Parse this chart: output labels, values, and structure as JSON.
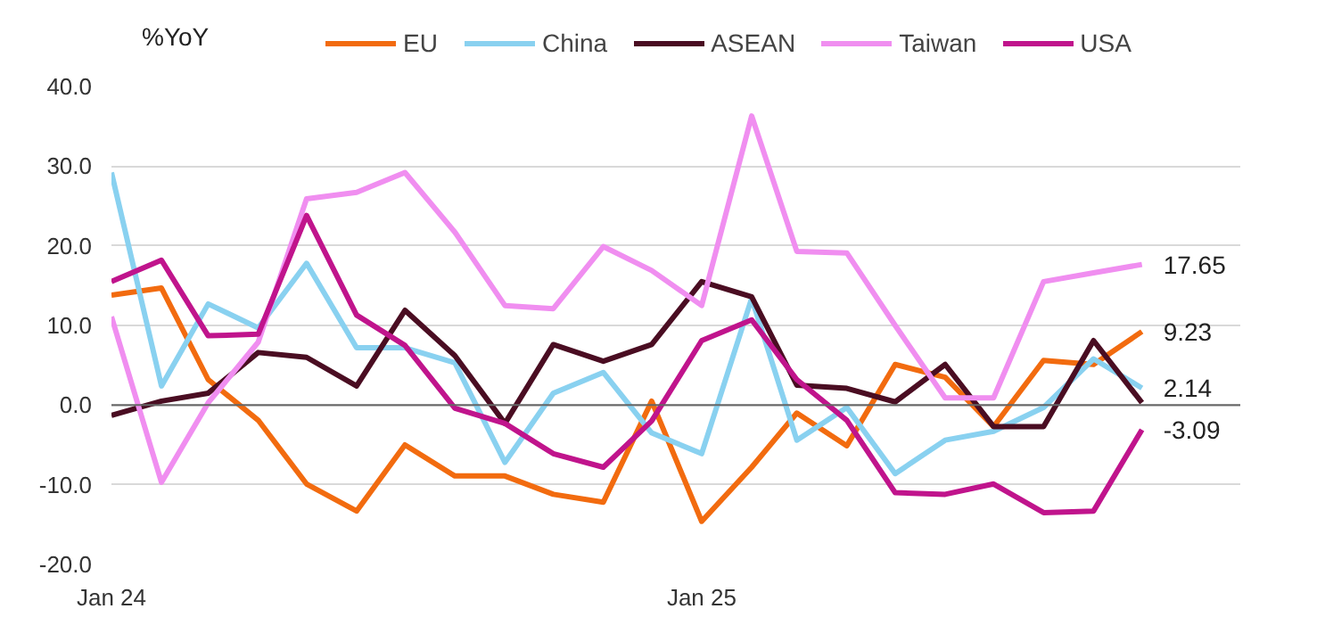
{
  "chart_data": {
    "type": "line",
    "ylabel": "%YoY",
    "x": [
      "2024-01",
      "2024-02",
      "2024-03",
      "2024-04",
      "2024-05",
      "2024-06",
      "2024-07",
      "2024-08",
      "2024-09",
      "2024-10",
      "2024-11",
      "2024-12",
      "2025-01",
      "2025-02",
      "2025-03",
      "2025-04",
      "2025-05",
      "2025-06",
      "2025-07",
      "2025-08",
      "2025-09",
      "2025-10"
    ],
    "series": [
      {
        "name": "EU",
        "color": "#f26b0f",
        "values": [
          13.8,
          14.7,
          3.2,
          -1.9,
          -9.9,
          -13.3,
          -5.0,
          -8.9,
          -8.9,
          -11.2,
          -12.2,
          0.5,
          -14.6,
          -7.8,
          -1.0,
          -5.1,
          5.1,
          3.5,
          -2.7,
          5.6,
          5.1,
          9.23
        ],
        "value_labels": [
          null,
          null,
          null,
          null,
          null,
          null,
          null,
          null,
          null,
          null,
          null,
          null,
          null,
          null,
          null,
          null,
          null,
          null,
          null,
          null,
          null,
          "9.23"
        ]
      },
      {
        "name": "China",
        "color": "#89d1f0",
        "values": [
          29.2,
          2.4,
          12.7,
          9.7,
          17.8,
          7.2,
          7.2,
          5.3,
          -7.2,
          1.5,
          4.1,
          -3.5,
          -6.1,
          13.4,
          -4.4,
          -0.3,
          -8.6,
          -4.4,
          -3.3,
          -0.3,
          5.8,
          2.14
        ],
        "value_labels": [
          null,
          null,
          null,
          null,
          null,
          null,
          null,
          null,
          null,
          null,
          null,
          null,
          null,
          null,
          null,
          null,
          null,
          null,
          null,
          null,
          null,
          "2.14"
        ]
      },
      {
        "name": "ASEAN",
        "color": "#4a0d22",
        "values": [
          -1.3,
          0.5,
          1.5,
          6.6,
          6.0,
          2.4,
          11.9,
          6.2,
          -2.3,
          7.6,
          5.5,
          7.6,
          15.5,
          13.6,
          2.5,
          2.1,
          0.4,
          5.1,
          -2.7,
          -2.7,
          8.1,
          0.3
        ]
      },
      {
        "name": "Taiwan",
        "color": "#f08ef0",
        "values": [
          11.1,
          -9.7,
          0.3,
          7.9,
          25.9,
          26.7,
          29.2,
          21.7,
          12.5,
          12.1,
          19.9,
          16.9,
          12.5,
          36.3,
          19.3,
          19.1,
          10.0,
          0.9,
          0.9,
          15.5,
          16.6,
          17.65
        ],
        "value_labels": [
          null,
          null,
          null,
          null,
          null,
          null,
          null,
          null,
          null,
          null,
          null,
          null,
          null,
          null,
          null,
          null,
          null,
          null,
          null,
          null,
          null,
          "17.65"
        ]
      },
      {
        "name": "USA",
        "color": "#c0148c",
        "values": [
          15.5,
          18.2,
          8.7,
          8.9,
          23.8,
          11.3,
          7.5,
          -0.4,
          -2.3,
          -6.1,
          -7.8,
          -2.0,
          8.1,
          10.7,
          3.2,
          -1.9,
          -11.0,
          -11.2,
          -9.9,
          -13.5,
          -13.3,
          -3.09
        ],
        "value_labels": [
          null,
          null,
          null,
          null,
          null,
          null,
          null,
          null,
          null,
          null,
          null,
          null,
          null,
          null,
          null,
          null,
          null,
          null,
          null,
          null,
          null,
          "-3.09"
        ]
      }
    ],
    "xlim": [
      "2024-01",
      "2025-12"
    ],
    "xticks": [
      {
        "value": "2024-01",
        "label": "Jan 24"
      },
      {
        "value": "2025-01",
        "label": "Jan 25"
      }
    ],
    "ylim": [
      -20,
      40
    ],
    "yticks": [
      {
        "value": -20,
        "label": "-20.0"
      },
      {
        "value": -10,
        "label": "-10.0"
      },
      {
        "value": 0,
        "label": "0.0"
      },
      {
        "value": 10,
        "label": "10.0"
      },
      {
        "value": 20,
        "label": "20.0"
      },
      {
        "value": 30,
        "label": "30.0"
      },
      {
        "value": 40,
        "label": "40.0"
      }
    ],
    "ref_lines": [
      {
        "axis": "y",
        "value": 0,
        "color": "#666666"
      }
    ],
    "grid": "y",
    "legend": "top",
    "marker": "none",
    "line_style": "solid"
  }
}
